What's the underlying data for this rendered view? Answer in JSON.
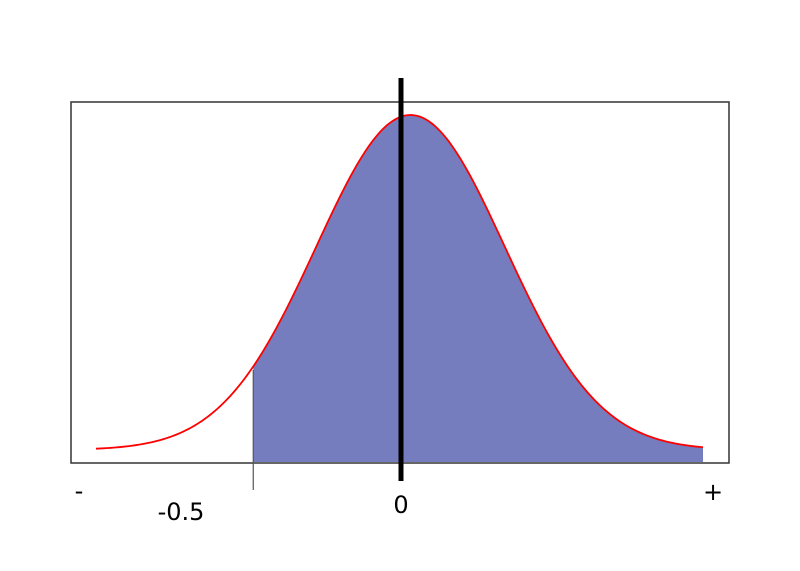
{
  "chart_data": {
    "type": "area",
    "title": "",
    "xlabel": "",
    "ylabel": "",
    "distribution": "normal",
    "mean": 0,
    "sd": 0.3,
    "xlim": [
      -1.0,
      0.93
    ],
    "shade_from": -0.5,
    "marker_x": -0.5,
    "center_x": 0,
    "tick_labels": [
      {
        "x": -1.0,
        "label": "-"
      },
      {
        "x": -0.5,
        "label": "-0.5"
      },
      {
        "x": 0,
        "label": "0"
      },
      {
        "x": 0.93,
        "label": "+"
      }
    ],
    "grid": false,
    "legend": "none"
  },
  "colors": {
    "fill": "#757dbf",
    "curve": "#ff0000",
    "axis": "#000000",
    "frame": "#333333",
    "marker": "#555555"
  }
}
